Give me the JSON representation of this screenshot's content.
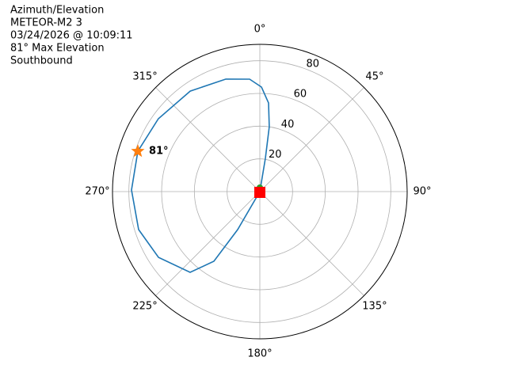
{
  "chart_data": {
    "type": "polar",
    "title_lines": [
      "Azimuth/Elevation",
      "METEOR-M2 3",
      "03/24/2026 @ 10:09:11",
      "81° Max Elevation",
      "Southbound"
    ],
    "theta_zero": "N",
    "theta_direction": "clockwise",
    "rlim": [
      0,
      90
    ],
    "rticks": [
      20,
      40,
      60,
      80
    ],
    "thetaticks": [
      {
        "value": 0,
        "label": "0°"
      },
      {
        "value": 45,
        "label": "45°"
      },
      {
        "value": 90,
        "label": "90°"
      },
      {
        "value": 135,
        "label": "135°"
      },
      {
        "value": 180,
        "label": "180°"
      },
      {
        "value": 225,
        "label": "225°"
      },
      {
        "value": 270,
        "label": "270°"
      },
      {
        "value": 315,
        "label": "315°"
      }
    ],
    "grid": true,
    "series": [
      {
        "color": "#1f77b4",
        "theta": [
          0,
          9.5,
          8.3,
          5.6,
          0.9,
          354.8,
          343.2,
          325.3,
          305.7,
          288.3,
          270.7,
          252.6,
          237,
          220.8,
          213.4,
          210.3,
          0
        ],
        "r": [
          0,
          20.6,
          40,
          54.4,
          63.9,
          69,
          71.8,
          74.7,
          76.3,
          78.5,
          78.4,
          77.6,
          73.8,
          65.2,
          51,
          26.9,
          0
        ]
      }
    ],
    "markers": [
      {
        "shape": "circle",
        "color": "#2ca02c",
        "theta": 0,
        "r": 0
      },
      {
        "shape": "square",
        "color": "#ff0000",
        "theta": 0,
        "r": 0
      }
    ],
    "annotation": {
      "text": "81°",
      "color": "#ff7f0e",
      "theta": 288.3,
      "r": 78.5
    }
  }
}
